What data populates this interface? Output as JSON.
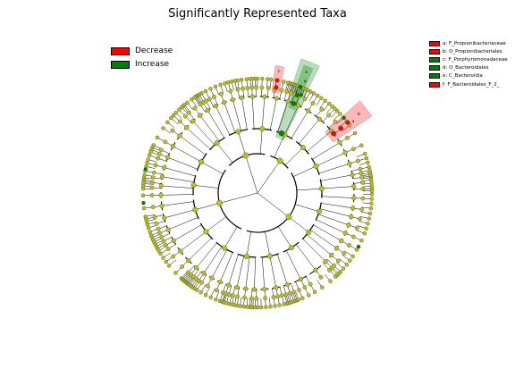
{
  "title": "Significantly Represented Taxa",
  "colors": {
    "decrease": "#ff0000",
    "increase": "#008000",
    "neutral_node": "#b9bf24",
    "node_edge": "#4c4c10",
    "branch": "#000000"
  },
  "legend": [
    {
      "label": "Decrease",
      "color": "#ff0000"
    },
    {
      "label": "Increase",
      "color": "#008000"
    }
  ],
  "taxa_legend": [
    {
      "label": "a: F_Propionibacteriaceae",
      "color": "#ff0000"
    },
    {
      "label": "b: O_Propionibacteriales",
      "color": "#ff0000"
    },
    {
      "label": "c: F_Porphyromonadaceae",
      "color": "#008000"
    },
    {
      "label": "d: O_Bacteroidales",
      "color": "#008000"
    },
    {
      "label": "e: C_Bacteroidia",
      "color": "#008000"
    },
    {
      "label": "f: F_Bacteroidales_F_2_",
      "color": "#ff0000"
    }
  ],
  "highlight_letters": [
    "a",
    "b",
    "c",
    "d",
    "e",
    "f"
  ]
}
